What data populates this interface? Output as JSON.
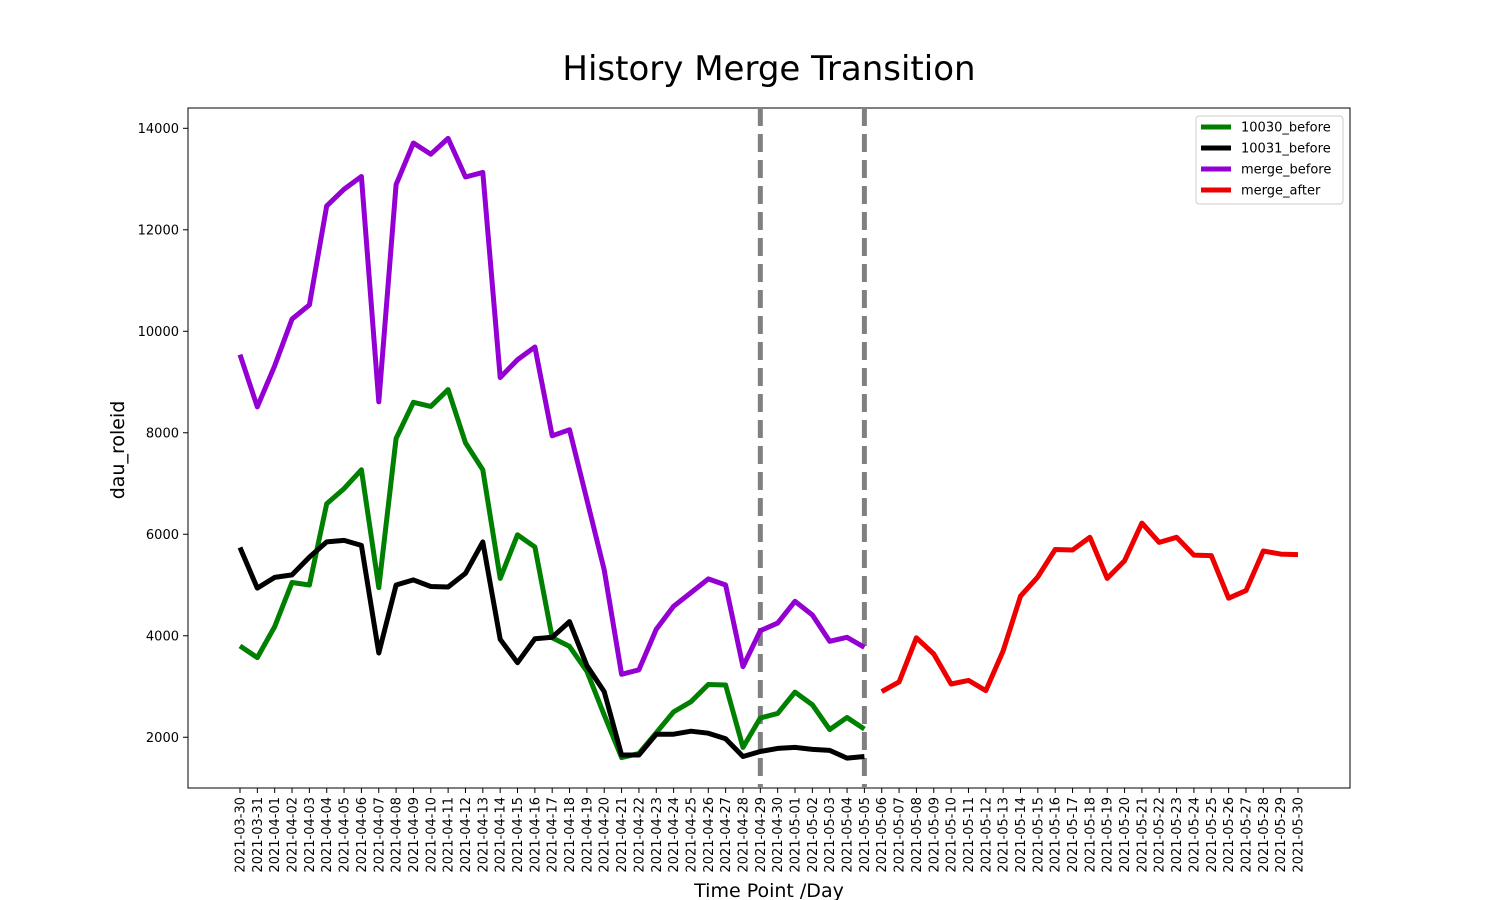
{
  "chart_data": {
    "type": "line",
    "title": "History Merge Transition",
    "xlabel": "Time Point /Day",
    "ylabel": "dau_roleid",
    "ylim": [
      1000,
      14400
    ],
    "yticks": [
      2000,
      4000,
      6000,
      8000,
      10000,
      12000,
      14000
    ],
    "grid": false,
    "legend_position": "top-right",
    "x": [
      "2021-03-30",
      "2021-03-31",
      "2021-04-01",
      "2021-04-02",
      "2021-04-03",
      "2021-04-04",
      "2021-04-05",
      "2021-04-06",
      "2021-04-07",
      "2021-04-08",
      "2021-04-09",
      "2021-04-10",
      "2021-04-11",
      "2021-04-12",
      "2021-04-13",
      "2021-04-14",
      "2021-04-15",
      "2021-04-16",
      "2021-04-17",
      "2021-04-18",
      "2021-04-19",
      "2021-04-20",
      "2021-04-21",
      "2021-04-22",
      "2021-04-23",
      "2021-04-24",
      "2021-04-25",
      "2021-04-26",
      "2021-04-27",
      "2021-04-28",
      "2021-04-29",
      "2021-04-30",
      "2021-05-01",
      "2021-05-02",
      "2021-05-03",
      "2021-05-04",
      "2021-05-05",
      "2021-05-06",
      "2021-05-07",
      "2021-05-08",
      "2021-05-09",
      "2021-05-10",
      "2021-05-11",
      "2021-05-12",
      "2021-05-13",
      "2021-05-14",
      "2021-05-15",
      "2021-05-16",
      "2021-05-17",
      "2021-05-18",
      "2021-05-19",
      "2021-05-20",
      "2021-05-21",
      "2021-05-22",
      "2021-05-23",
      "2021-05-24",
      "2021-05-25",
      "2021-05-26",
      "2021-05-27",
      "2021-05-28",
      "2021-05-29",
      "2021-05-30"
    ],
    "series": [
      {
        "name": "10030_before",
        "color": "#008000",
        "x": [
          "2021-03-30",
          "2021-03-31",
          "2021-04-01",
          "2021-04-02",
          "2021-04-03",
          "2021-04-04",
          "2021-04-05",
          "2021-04-06",
          "2021-04-07",
          "2021-04-08",
          "2021-04-09",
          "2021-04-10",
          "2021-04-11",
          "2021-04-12",
          "2021-04-13",
          "2021-04-14",
          "2021-04-15",
          "2021-04-16",
          "2021-04-17",
          "2021-04-18",
          "2021-04-19",
          "2021-04-20",
          "2021-04-21",
          "2021-04-22",
          "2021-04-23",
          "2021-04-24",
          "2021-04-25",
          "2021-04-26",
          "2021-04-27",
          "2021-04-28",
          "2021-04-29",
          "2021-04-30",
          "2021-05-01",
          "2021-05-02",
          "2021-05-03",
          "2021-05-04",
          "2021-05-05"
        ],
        "values": [
          3800,
          3570,
          4180,
          5050,
          5000,
          6600,
          6900,
          7270,
          4950,
          7890,
          8600,
          8520,
          8850,
          7800,
          7270,
          5130,
          5990,
          5750,
          3960,
          3790,
          3300,
          2440,
          1600,
          1680,
          2090,
          2500,
          2700,
          3040,
          3030,
          1800,
          2380,
          2470,
          2890,
          2640,
          2150,
          2390,
          2160
        ]
      },
      {
        "name": "10031_before",
        "color": "#000000",
        "x": [
          "2021-03-30",
          "2021-03-31",
          "2021-04-01",
          "2021-04-02",
          "2021-04-03",
          "2021-04-04",
          "2021-04-05",
          "2021-04-06",
          "2021-04-07",
          "2021-04-08",
          "2021-04-09",
          "2021-04-10",
          "2021-04-11",
          "2021-04-12",
          "2021-04-13",
          "2021-04-14",
          "2021-04-15",
          "2021-04-16",
          "2021-04-17",
          "2021-04-18",
          "2021-04-19",
          "2021-04-20",
          "2021-04-21",
          "2021-04-22",
          "2021-04-23",
          "2021-04-24",
          "2021-04-25",
          "2021-04-26",
          "2021-04-27",
          "2021-04-28",
          "2021-04-29",
          "2021-04-30",
          "2021-05-01",
          "2021-05-02",
          "2021-05-03",
          "2021-05-04",
          "2021-05-05"
        ],
        "values": [
          5740,
          4940,
          5150,
          5200,
          5550,
          5850,
          5880,
          5780,
          3660,
          5000,
          5100,
          4970,
          4960,
          5230,
          5850,
          3930,
          3470,
          3940,
          3970,
          4280,
          3410,
          2900,
          1650,
          1650,
          2060,
          2060,
          2120,
          2080,
          1970,
          1620,
          1720,
          1780,
          1800,
          1760,
          1740,
          1590,
          1620
        ]
      },
      {
        "name": "merge_before",
        "color": "#9400D3",
        "x": [
          "2021-03-30",
          "2021-03-31",
          "2021-04-01",
          "2021-04-02",
          "2021-04-03",
          "2021-04-04",
          "2021-04-05",
          "2021-04-06",
          "2021-04-07",
          "2021-04-08",
          "2021-04-09",
          "2021-04-10",
          "2021-04-11",
          "2021-04-12",
          "2021-04-13",
          "2021-04-14",
          "2021-04-15",
          "2021-04-16",
          "2021-04-17",
          "2021-04-18",
          "2021-04-19",
          "2021-04-20",
          "2021-04-21",
          "2021-04-22",
          "2021-04-23",
          "2021-04-24",
          "2021-04-25",
          "2021-04-26",
          "2021-04-27",
          "2021-04-28",
          "2021-04-29",
          "2021-04-30",
          "2021-05-01",
          "2021-05-02",
          "2021-05-03",
          "2021-05-04",
          "2021-05-05"
        ],
        "values": [
          9540,
          8510,
          9320,
          10240,
          10520,
          12470,
          12800,
          13050,
          8610,
          12890,
          13710,
          13490,
          13800,
          13040,
          13130,
          9090,
          9440,
          9690,
          7940,
          8060,
          6680,
          5300,
          3240,
          3330,
          4130,
          4580,
          4850,
          5120,
          5000,
          3390,
          4100,
          4250,
          4680,
          4410,
          3890,
          3970,
          3770
        ]
      },
      {
        "name": "merge_after",
        "color": "#EE0000",
        "x": [
          "2021-05-06",
          "2021-05-07",
          "2021-05-08",
          "2021-05-09",
          "2021-05-10",
          "2021-05-11",
          "2021-05-12",
          "2021-05-13",
          "2021-05-14",
          "2021-05-15",
          "2021-05-16",
          "2021-05-17",
          "2021-05-18",
          "2021-05-19",
          "2021-05-20",
          "2021-05-21",
          "2021-05-22",
          "2021-05-23",
          "2021-05-24",
          "2021-05-25",
          "2021-05-26",
          "2021-05-27",
          "2021-05-28",
          "2021-05-29",
          "2021-05-30"
        ],
        "values": [
          2900,
          3090,
          3960,
          3640,
          3050,
          3120,
          2920,
          3700,
          4780,
          5160,
          5700,
          5690,
          5940,
          5130,
          5480,
          6220,
          5840,
          5940,
          5590,
          5580,
          4740,
          4890,
          5670,
          5610,
          5600
        ]
      }
    ],
    "vertical_lines": [
      {
        "x": "2021-04-29",
        "color": "#808080",
        "style": "dashed"
      },
      {
        "x": "2021-05-05",
        "color": "#808080",
        "style": "dashed"
      }
    ]
  }
}
